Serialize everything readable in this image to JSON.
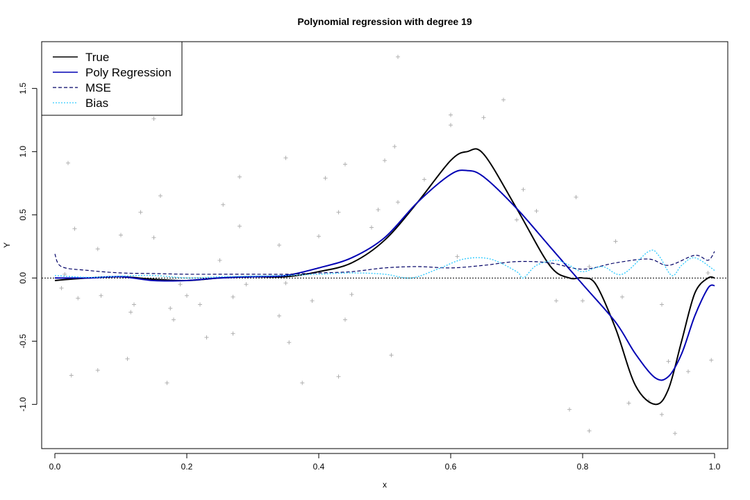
{
  "chart_data": {
    "type": "line",
    "title": "Polynomial regression with degree 19",
    "xlabel": "x",
    "ylabel": "Y",
    "xlim": [
      -0.02,
      1.02
    ],
    "ylim": [
      -1.35,
      1.87
    ],
    "x_ticks": [
      "0.0",
      "0.2",
      "0.4",
      "0.6",
      "0.8",
      "1.0"
    ],
    "y_ticks": [
      "-1.0",
      "-0.5",
      "0.0",
      "0.5",
      "1.0",
      "1.5"
    ],
    "legend_position": "top-left",
    "reference_line_y": 0,
    "series": [
      {
        "name": "True",
        "style": "solid",
        "color": "#000000",
        "x": [
          0.0,
          0.05,
          0.1,
          0.15,
          0.2,
          0.25,
          0.3,
          0.35,
          0.4,
          0.45,
          0.5,
          0.55,
          0.6,
          0.625,
          0.65,
          0.7,
          0.75,
          0.78,
          0.8,
          0.82,
          0.85,
          0.88,
          0.91,
          0.93,
          0.95,
          0.97,
          0.99,
          1.0
        ],
        "y": [
          -0.02,
          0.0,
          0.01,
          -0.01,
          -0.02,
          0.0,
          0.01,
          0.01,
          0.05,
          0.12,
          0.3,
          0.6,
          0.93,
          1.0,
          0.98,
          0.55,
          0.1,
          0.0,
          0.0,
          -0.05,
          -0.4,
          -0.85,
          -1.0,
          -0.88,
          -0.5,
          -0.12,
          0.0,
          0.0
        ]
      },
      {
        "name": "Poly Regression",
        "style": "solid",
        "color": "#0000b4",
        "x": [
          0.0,
          0.05,
          0.1,
          0.15,
          0.2,
          0.25,
          0.3,
          0.35,
          0.4,
          0.45,
          0.5,
          0.55,
          0.6,
          0.625,
          0.65,
          0.7,
          0.75,
          0.8,
          0.85,
          0.88,
          0.91,
          0.93,
          0.95,
          0.97,
          0.99,
          1.0
        ],
        "y": [
          0.0,
          0.0,
          0.01,
          -0.02,
          -0.02,
          0.0,
          0.01,
          0.02,
          0.08,
          0.16,
          0.32,
          0.6,
          0.82,
          0.85,
          0.8,
          0.55,
          0.25,
          -0.05,
          -0.35,
          -0.6,
          -0.79,
          -0.78,
          -0.6,
          -0.3,
          -0.08,
          -0.06
        ]
      },
      {
        "name": "MSE",
        "style": "dashed",
        "color": "#000066",
        "x": [
          0.0,
          0.01,
          0.05,
          0.1,
          0.15,
          0.2,
          0.25,
          0.3,
          0.35,
          0.4,
          0.45,
          0.5,
          0.55,
          0.6,
          0.65,
          0.7,
          0.75,
          0.8,
          0.85,
          0.9,
          0.93,
          0.97,
          0.99,
          1.0
        ],
        "y": [
          0.19,
          0.09,
          0.06,
          0.04,
          0.035,
          0.03,
          0.03,
          0.03,
          0.03,
          0.04,
          0.05,
          0.08,
          0.09,
          0.08,
          0.1,
          0.13,
          0.12,
          0.07,
          0.12,
          0.15,
          0.1,
          0.18,
          0.14,
          0.21
        ]
      },
      {
        "name": "Bias",
        "style": "dotted",
        "color": "#33ccff",
        "x": [
          0.0,
          0.05,
          0.1,
          0.15,
          0.2,
          0.25,
          0.3,
          0.35,
          0.4,
          0.45,
          0.5,
          0.54,
          0.58,
          0.62,
          0.66,
          0.7,
          0.71,
          0.73,
          0.76,
          0.78,
          0.8,
          0.83,
          0.86,
          0.9,
          0.915,
          0.935,
          0.95,
          0.97,
          1.0
        ],
        "y": [
          0.02,
          0.005,
          0.015,
          0.02,
          0.0,
          0.01,
          0.015,
          0.02,
          0.03,
          0.04,
          0.03,
          0.0,
          0.07,
          0.15,
          0.15,
          0.05,
          0.0,
          0.1,
          0.14,
          0.1,
          0.05,
          0.09,
          0.03,
          0.21,
          0.18,
          0.02,
          0.1,
          0.16,
          0.06
        ]
      },
      {
        "name": "",
        "style": "points",
        "color": "#b0b0b0",
        "x": [
          0.01,
          0.015,
          0.02,
          0.025,
          0.03,
          0.035,
          0.065,
          0.065,
          0.07,
          0.1,
          0.11,
          0.115,
          0.12,
          0.13,
          0.15,
          0.15,
          0.16,
          0.17,
          0.175,
          0.18,
          0.19,
          0.2,
          0.22,
          0.23,
          0.25,
          0.255,
          0.27,
          0.27,
          0.28,
          0.28,
          0.29,
          0.34,
          0.34,
          0.35,
          0.35,
          0.355,
          0.375,
          0.39,
          0.4,
          0.41,
          0.43,
          0.43,
          0.44,
          0.44,
          0.45,
          0.48,
          0.49,
          0.5,
          0.51,
          0.515,
          0.52,
          0.52,
          0.56,
          0.6,
          0.6,
          0.61,
          0.65,
          0.68,
          0.7,
          0.71,
          0.73,
          0.75,
          0.76,
          0.78,
          0.79,
          0.8,
          0.81,
          0.81,
          0.85,
          0.86,
          0.87,
          0.9,
          0.92,
          0.92,
          0.93,
          0.94,
          0.96,
          0.99,
          0.995
        ],
        "y": [
          -0.08,
          0.03,
          0.91,
          -0.77,
          0.39,
          -0.16,
          0.23,
          -0.73,
          -0.14,
          0.34,
          -0.64,
          -0.27,
          -0.21,
          0.52,
          1.26,
          0.32,
          0.65,
          -0.83,
          -0.24,
          -0.33,
          -0.05,
          -0.14,
          -0.21,
          -0.47,
          0.14,
          0.58,
          -0.15,
          -0.44,
          0.8,
          0.41,
          -0.05,
          0.26,
          -0.3,
          0.95,
          -0.04,
          -0.51,
          -0.83,
          -0.18,
          0.33,
          0.79,
          0.52,
          -0.78,
          0.9,
          -0.33,
          -0.13,
          0.4,
          0.54,
          0.93,
          -0.61,
          1.04,
          1.75,
          0.6,
          0.78,
          1.21,
          1.29,
          0.17,
          1.27,
          1.41,
          0.46,
          0.7,
          0.53,
          0.11,
          -0.18,
          -1.04,
          0.64,
          -0.18,
          -1.21,
          0.09,
          0.29,
          -0.15,
          -0.99,
          -0.97,
          -1.08,
          -0.21,
          -0.66,
          -1.23,
          -0.74,
          0.04,
          -0.65
        ]
      }
    ]
  }
}
